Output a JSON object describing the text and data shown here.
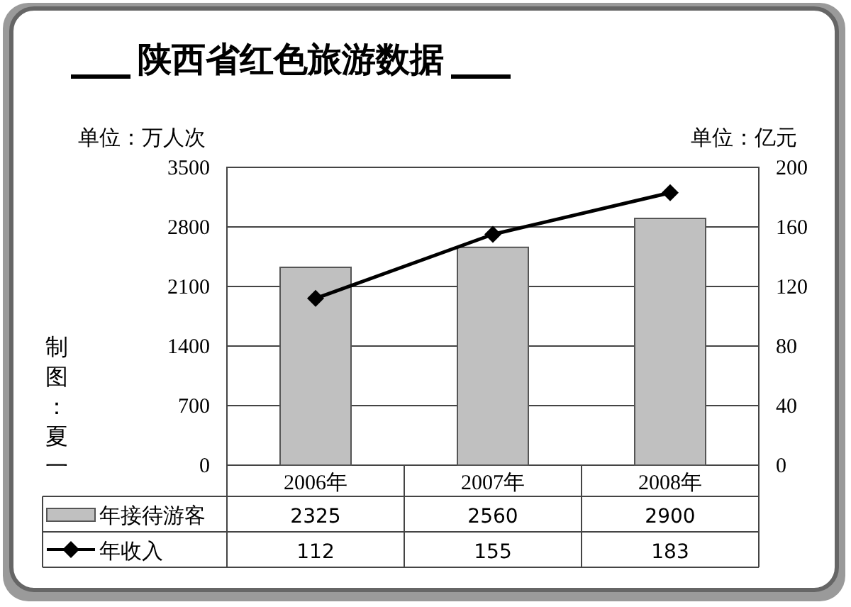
{
  "chart_data": {
    "type": "bar",
    "title": "陕西省红色旅游数据",
    "ylabel": "单位：万人次",
    "y2label": "单位：亿元",
    "categories": [
      "2006年",
      "2007年",
      "2008年"
    ],
    "series": [
      {
        "name": "年接待游客",
        "color": "#c0c0c0",
        "values": [
          2325,
          2560,
          2900
        ]
      },
      {
        "name": "年收入",
        "type": "line",
        "axis": "y2",
        "color": "#000000",
        "marker": "diamond",
        "values": [
          112,
          155,
          183
        ]
      }
    ],
    "ylim": [
      0,
      3500
    ],
    "yticks": [
      0,
      700,
      1400,
      2100,
      2800,
      3500
    ],
    "y2lim": [
      0,
      200
    ],
    "y2ticks": [
      0,
      40,
      80,
      120,
      160,
      200
    ],
    "grid": "y",
    "legend": "bottom",
    "data_labels": true,
    "annotations": [
      "制图：夏一"
    ]
  }
}
